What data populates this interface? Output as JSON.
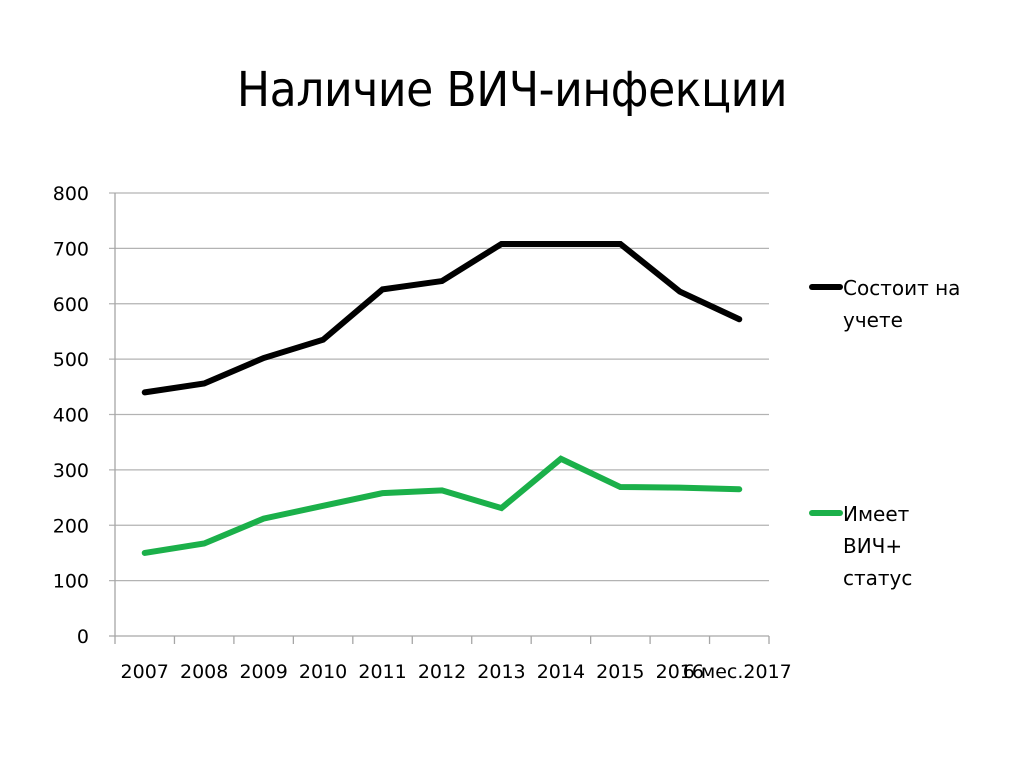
{
  "slide": {
    "title": "Наличие ВИЧ-инфекции"
  },
  "chart_data": {
    "type": "line",
    "title": "Наличие ВИЧ-инфекции",
    "xlabel": "",
    "ylabel": "",
    "categories": [
      "2007",
      "2008",
      "2009",
      "2010",
      "2011",
      "2012",
      "2013",
      "2014",
      "2015",
      "2016",
      "6 мес.2017"
    ],
    "series": [
      {
        "name": "Состоит на учете",
        "color": "#000000",
        "values": [
          440,
          456,
          502,
          535,
          626,
          641,
          708,
          708,
          708,
          622,
          572
        ]
      },
      {
        "name": "Имеет ВИЧ+ статус",
        "color": "#1BB04A",
        "values": [
          150,
          167,
          212,
          235,
          258,
          263,
          231,
          320,
          269,
          268,
          265
        ]
      }
    ],
    "ylim": [
      0,
      800
    ],
    "yticks": [
      0,
      100,
      200,
      300,
      400,
      500,
      600,
      700,
      800
    ],
    "grid": true,
    "legend_position": "right",
    "legend": [
      {
        "lines": [
          "Состоит на",
          "учете"
        ],
        "color": "#000000"
      },
      {
        "lines": [
          "Имеет",
          "ВИЧ+",
          "статус"
        ],
        "color": "#1BB04A"
      }
    ]
  }
}
